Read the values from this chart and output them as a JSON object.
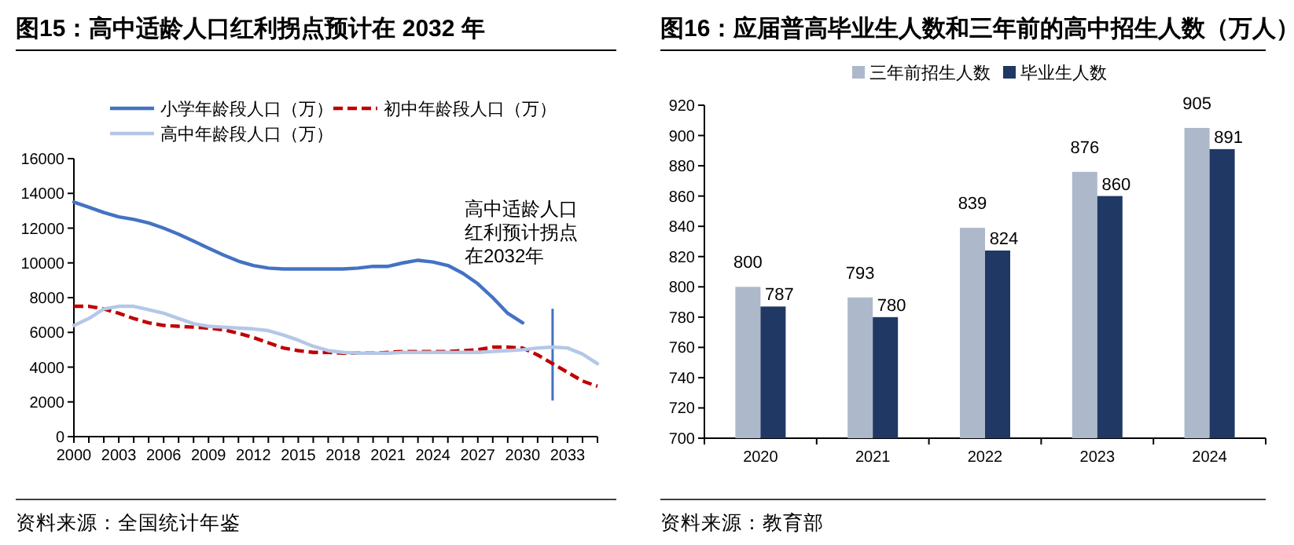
{
  "chart_data": [
    {
      "type": "line",
      "title": "图15：高中适龄人口红利拐点预计在 2032 年",
      "x": [
        2000,
        2001,
        2002,
        2003,
        2004,
        2005,
        2006,
        2007,
        2008,
        2009,
        2010,
        2011,
        2012,
        2013,
        2014,
        2015,
        2016,
        2017,
        2018,
        2019,
        2020,
        2021,
        2022,
        2023,
        2024,
        2025,
        2026,
        2027,
        2028,
        2029,
        2030,
        2031,
        2032,
        2033,
        2034,
        2035
      ],
      "series": [
        {
          "name": "小学年龄段人口（万）",
          "color": "#4472c4",
          "line_style": "solid",
          "values": [
            13500,
            13200,
            12900,
            12650,
            12500,
            12300,
            12000,
            11650,
            11250,
            10850,
            10450,
            10100,
            9850,
            9700,
            9650,
            9650,
            9650,
            9650,
            9650,
            9700,
            9800,
            9800,
            10000,
            10150,
            10050,
            9850,
            9400,
            8800,
            8000,
            7100,
            6550,
            null,
            null,
            null,
            null,
            null
          ]
        },
        {
          "name": "初中年龄段人口（万）",
          "color": "#c00000",
          "line_style": "dashed",
          "values": [
            7500,
            7500,
            7350,
            7100,
            6800,
            6550,
            6400,
            6350,
            6300,
            6250,
            6150,
            5950,
            5700,
            5400,
            5100,
            4950,
            4850,
            4850,
            4800,
            4800,
            4800,
            4850,
            4900,
            4900,
            4900,
            4900,
            4950,
            5000,
            5150,
            5150,
            5100,
            4700,
            4200,
            3700,
            3200,
            2900
          ]
        },
        {
          "name": "高中年龄段人口（万）",
          "color": "#b4c7e7",
          "line_style": "solid",
          "values": [
            6400,
            6800,
            7350,
            7500,
            7500,
            7300,
            7100,
            6800,
            6500,
            6350,
            6300,
            6250,
            6200,
            6100,
            5850,
            5550,
            5200,
            4950,
            4850,
            4800,
            4800,
            4800,
            4850,
            4850,
            4850,
            4850,
            4850,
            4850,
            4900,
            4950,
            5000,
            5100,
            5150,
            5100,
            4750,
            4200
          ]
        }
      ],
      "xlim": [
        2000,
        2035
      ],
      "xticks": [
        2000,
        {
          "value": 2001,
          "label": null
        },
        {
          "value": 2002,
          "label": null
        },
        2003,
        {
          "value": 2004,
          "label": null
        },
        {
          "value": 2005,
          "label": null
        },
        2006,
        {
          "value": 2007,
          "label": null
        },
        {
          "value": 2008,
          "label": null
        },
        2009,
        {
          "value": 2010,
          "label": null
        },
        {
          "value": 2011,
          "label": null
        },
        2012,
        {
          "value": 2013,
          "label": null
        },
        {
          "value": 2014,
          "label": null
        },
        2015,
        {
          "value": 2016,
          "label": null
        },
        {
          "value": 2017,
          "label": null
        },
        2018,
        {
          "value": 2019,
          "label": null
        },
        {
          "value": 2020,
          "label": null
        },
        2021,
        {
          "value": 2022,
          "label": null
        },
        {
          "value": 2023,
          "label": null
        },
        2024,
        {
          "value": 2025,
          "label": null
        },
        {
          "value": 2026,
          "label": null
        },
        2027,
        {
          "value": 2028,
          "label": null
        },
        {
          "value": 2029,
          "label": null
        },
        2030,
        {
          "value": 2031,
          "label": null
        },
        {
          "value": 2032,
          "label": null
        },
        2033,
        {
          "value": 2034,
          "label": null
        },
        {
          "value": 2035,
          "label": null
        }
      ],
      "ylim": [
        0,
        16000
      ],
      "yticks": [
        0,
        2000,
        4000,
        6000,
        8000,
        10000,
        12000,
        14000,
        16000
      ],
      "grid": false,
      "legend": "top",
      "marker": "none",
      "ref_lines": [
        {
          "axis": "x",
          "value": 2032,
          "label": "高中适龄人口红利预计拐点在2032年",
          "color": "#4472c4"
        }
      ],
      "annotations": [
        "资料来源：全国统计年鉴"
      ]
    },
    {
      "type": "bar",
      "title": "图16：应届普高毕业生人数和三年前的高中招生人数（万人）",
      "categories": [
        "2020",
        "2021",
        "2022",
        "2023",
        "2024"
      ],
      "series": [
        {
          "name": "三年前招生人数",
          "color": "#adb9ca",
          "values": [
            800,
            793,
            839,
            876,
            905
          ]
        },
        {
          "name": "毕业生人数",
          "color": "#1f3864",
          "values": [
            787,
            780,
            824,
            860,
            891
          ]
        }
      ],
      "ylim": [
        700,
        920
      ],
      "yticks": [
        700,
        720,
        740,
        760,
        780,
        800,
        820,
        840,
        860,
        880,
        900,
        920
      ],
      "grid": false,
      "legend": "top",
      "data_labels": true,
      "annotations": [
        "资料来源：教育部"
      ]
    }
  ]
}
